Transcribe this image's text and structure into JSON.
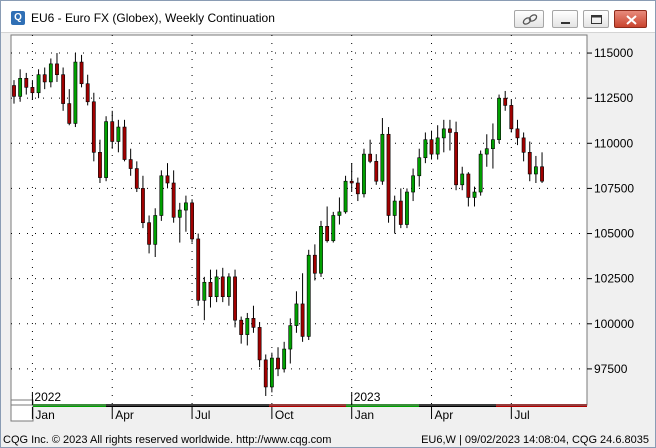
{
  "window": {
    "title": "EU6 - Euro FX (Globex), Weekly Continuation",
    "app_icon_glyph": "Q"
  },
  "icons": {
    "app": "cqg-app-icon",
    "link": "link-chain-icon",
    "minimize": "minimize-icon",
    "maximize": "maximize-icon",
    "close": "close-icon"
  },
  "colors": {
    "up_candle": "#00a000",
    "down_candle": "#a00000",
    "wick": "#000000",
    "plot_bg": "#ffffff",
    "grid": "#000000",
    "time_bar_green": "#00a000",
    "time_bar_black": "#000000",
    "time_bar_red": "#b00000"
  },
  "footer": {
    "left": "CQG Inc. © 2023 All rights reserved worldwide. http://www.cqg.com",
    "right": "EU6,W | 09/02/2023 14:08:04, CQG 24.6.8035"
  },
  "chart_data": {
    "type": "candlestick",
    "instrument": "EU6",
    "interval": "Weekly",
    "ylim": [
      95500,
      116000
    ],
    "yticks": [
      97500,
      100000,
      102500,
      105000,
      107500,
      110000,
      112500,
      115000
    ],
    "grid": true,
    "year_labels": [
      "2022",
      "2023"
    ],
    "month_labels": [
      "Jan",
      "Apr",
      "Jul",
      "Oct",
      "Jan",
      "Apr",
      "Jul"
    ],
    "candles": [
      [
        113200,
        113500,
        112200,
        112600
      ],
      [
        112600,
        114100,
        112300,
        113600
      ],
      [
        113600,
        113900,
        112700,
        113100
      ],
      [
        113100,
        113500,
        112400,
        112800
      ],
      [
        112800,
        114100,
        112500,
        113800
      ],
      [
        113800,
        114200,
        113000,
        113400
      ],
      [
        113400,
        114700,
        113100,
        114400
      ],
      [
        114400,
        115000,
        113400,
        113800
      ],
      [
        113800,
        114200,
        111800,
        112200
      ],
      [
        112200,
        113000,
        111000,
        111100
      ],
      [
        111100,
        115000,
        110900,
        114500
      ],
      [
        114500,
        114900,
        113100,
        113300
      ],
      [
        113300,
        113800,
        112100,
        112300
      ],
      [
        112300,
        112800,
        109000,
        109500
      ],
      [
        109500,
        110200,
        107800,
        108100
      ],
      [
        108100,
        111500,
        107900,
        111200
      ],
      [
        111200,
        111800,
        109700,
        110100
      ],
      [
        110100,
        111300,
        109500,
        110900
      ],
      [
        110900,
        111300,
        109000,
        109100
      ],
      [
        109100,
        109700,
        108200,
        108600
      ],
      [
        108600,
        109000,
        107300,
        107500
      ],
      [
        107500,
        108200,
        105300,
        105600
      ],
      [
        105600,
        106000,
        103900,
        104400
      ],
      [
        104400,
        106400,
        103700,
        106000
      ],
      [
        106000,
        108500,
        105700,
        108200
      ],
      [
        108200,
        108900,
        107500,
        107800
      ],
      [
        107800,
        108500,
        105600,
        105900
      ],
      [
        105900,
        106700,
        104500,
        106300
      ],
      [
        106300,
        107100,
        105100,
        106700
      ],
      [
        106700,
        106900,
        104500,
        104700
      ],
      [
        104700,
        105000,
        101000,
        101300
      ],
      [
        101300,
        102600,
        100200,
        102300
      ],
      [
        102300,
        103000,
        100900,
        101500
      ],
      [
        101500,
        103000,
        101200,
        102600
      ],
      [
        102600,
        103100,
        101200,
        101500
      ],
      [
        101500,
        102800,
        101000,
        102600
      ],
      [
        102600,
        103000,
        99800,
        100200
      ],
      [
        100200,
        100400,
        98900,
        99400
      ],
      [
        99400,
        100600,
        98800,
        100300
      ],
      [
        100300,
        101000,
        99500,
        99800
      ],
      [
        99800,
        100100,
        97600,
        98000
      ],
      [
        98000,
        98300,
        96000,
        96500
      ],
      [
        96500,
        98400,
        96200,
        98100
      ],
      [
        98100,
        98700,
        97100,
        97500
      ],
      [
        97500,
        99000,
        97300,
        98600
      ],
      [
        98600,
        100300,
        97800,
        99900
      ],
      [
        99900,
        101800,
        99500,
        101100
      ],
      [
        101100,
        102800,
        99000,
        99300
      ],
      [
        99300,
        104100,
        99100,
        103800
      ],
      [
        103800,
        104400,
        102400,
        102800
      ],
      [
        102800,
        105700,
        102600,
        105400
      ],
      [
        105400,
        106500,
        104500,
        104600
      ],
      [
        104600,
        106200,
        104500,
        106000
      ],
      [
        106000,
        107000,
        105500,
        106200
      ],
      [
        106200,
        108200,
        106100,
        107900
      ],
      [
        107900,
        108900,
        107300,
        107800
      ],
      [
        107800,
        108100,
        106800,
        107200
      ],
      [
        107200,
        109700,
        107000,
        109400
      ],
      [
        109400,
        110200,
        108900,
        109000
      ],
      [
        109000,
        109400,
        107700,
        107900
      ],
      [
        107900,
        111400,
        107700,
        110500
      ],
      [
        110500,
        110900,
        105600,
        106000
      ],
      [
        106000,
        107100,
        105000,
        106800
      ],
      [
        106800,
        107500,
        105300,
        105500
      ],
      [
        105500,
        107500,
        105300,
        107300
      ],
      [
        107300,
        108600,
        106800,
        108200
      ],
      [
        108200,
        109700,
        107600,
        109200
      ],
      [
        109200,
        110600,
        108900,
        110200
      ],
      [
        110200,
        110700,
        109100,
        109400
      ],
      [
        109400,
        111000,
        109100,
        110300
      ],
      [
        110300,
        111300,
        109500,
        110800
      ],
      [
        110800,
        111300,
        109600,
        110600
      ],
      [
        110600,
        111200,
        107400,
        107700
      ],
      [
        107700,
        108700,
        107400,
        108300
      ],
      [
        108300,
        108400,
        106500,
        107000
      ],
      [
        107000,
        107600,
        106500,
        107300
      ],
      [
        107300,
        109600,
        107100,
        109400
      ],
      [
        109400,
        110500,
        108700,
        109700
      ],
      [
        109700,
        111100,
        108600,
        110200
      ],
      [
        110200,
        112700,
        110000,
        112500
      ],
      [
        112500,
        112900,
        111800,
        112100
      ],
      [
        112100,
        112400,
        110600,
        110800
      ],
      [
        110800,
        111300,
        109900,
        110300
      ],
      [
        110300,
        110600,
        109000,
        109500
      ],
      [
        109500,
        110100,
        107900,
        108300
      ],
      [
        108300,
        109300,
        107800,
        108700
      ],
      [
        108700,
        109500,
        107800,
        107900
      ]
    ]
  }
}
